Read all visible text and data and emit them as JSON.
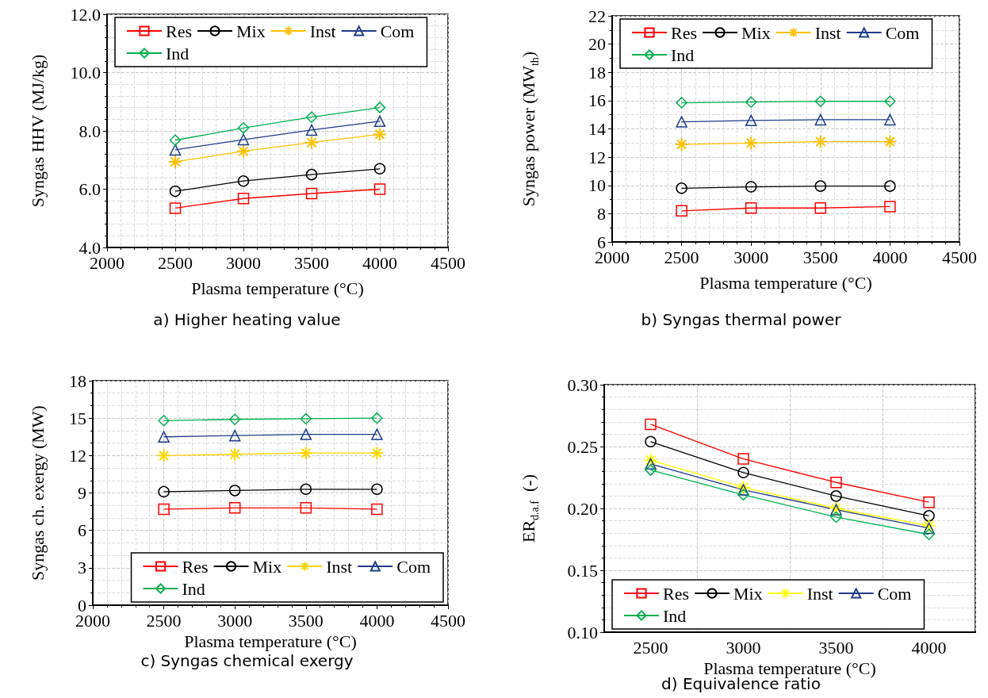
{
  "chart_data": [
    {
      "type": "line",
      "title": "a) Higher heating value",
      "xlabel": "Plasma temperature (°C)",
      "ylabel": "Syngas HHV (MJ/kg)",
      "x": [
        2500,
        3000,
        3500,
        4000
      ],
      "xlim": [
        2000,
        4500
      ],
      "xticks": [
        2000,
        2500,
        3000,
        3500,
        4000,
        4500
      ],
      "ylim": [
        4,
        12
      ],
      "yticks": [
        {
          "value": 4,
          "label": "4.0"
        },
        {
          "value": 6,
          "label": "6.0"
        },
        {
          "value": 8,
          "label": "8.0"
        },
        {
          "value": 10,
          "label": "10.0"
        },
        {
          "value": 12,
          "label": "12.0"
        }
      ],
      "grid": true,
      "legend": "top left",
      "series": [
        {
          "name": "Res",
          "color": "#ff0000",
          "marker": "square",
          "values": [
            5.35,
            5.68,
            5.85,
            6.0
          ]
        },
        {
          "name": "Mix",
          "color": "#000000",
          "marker": "circle",
          "values": [
            5.93,
            6.28,
            6.5,
            6.7
          ]
        },
        {
          "name": "Inst",
          "color": "#ffc000",
          "marker": "cross",
          "values": [
            6.94,
            7.3,
            7.6,
            7.88
          ]
        },
        {
          "name": "Com",
          "color": "#1f3c88",
          "marker": "triangle",
          "values": [
            7.35,
            7.7,
            8.03,
            8.33
          ]
        },
        {
          "name": "Ind",
          "color": "#00b050",
          "marker": "diamond",
          "values": [
            7.68,
            8.1,
            8.47,
            8.8
          ]
        }
      ]
    },
    {
      "type": "line",
      "title": "b) Syngas thermal power",
      "xlabel": "Plasma temperature (°C)",
      "ylabel": "Syngas power (MW$_{th}$)",
      "x": [
        2500,
        3000,
        3500,
        4000
      ],
      "xlim": [
        2000,
        4500
      ],
      "xticks": [
        2000,
        2500,
        3000,
        3500,
        4000,
        4500
      ],
      "ylim": [
        6,
        22
      ],
      "yticks": [
        6,
        8,
        10,
        12,
        14,
        16,
        18,
        20,
        22
      ],
      "grid": true,
      "legend": "top",
      "series": [
        {
          "name": "Res",
          "color": "#ff0000",
          "marker": "square",
          "values": [
            8.2,
            8.4,
            8.4,
            8.5
          ]
        },
        {
          "name": "Mix",
          "color": "#000000",
          "marker": "circle",
          "values": [
            9.8,
            9.9,
            9.95,
            9.95
          ]
        },
        {
          "name": "Inst",
          "color": "#ffc000",
          "marker": "cross",
          "values": [
            12.9,
            13.0,
            13.1,
            13.1
          ]
        },
        {
          "name": "Com",
          "color": "#1f3c88",
          "marker": "triangle",
          "values": [
            14.5,
            14.6,
            14.65,
            14.65
          ]
        },
        {
          "name": "Ind",
          "color": "#00b050",
          "marker": "diamond",
          "values": [
            15.85,
            15.9,
            15.95,
            15.95
          ]
        }
      ]
    },
    {
      "type": "line",
      "title": "c) Syngas chemical exergy",
      "xlabel": "Plasma temperature (°C)",
      "ylabel": "Syngas ch. exergy (MW)",
      "x": [
        2500,
        3000,
        3500,
        4000
      ],
      "xlim": [
        2000,
        4500
      ],
      "xticks": [
        2000,
        2500,
        3000,
        3500,
        4000,
        4500
      ],
      "ylim": [
        0,
        18
      ],
      "yticks": [
        0,
        3,
        6,
        9,
        12,
        15,
        18
      ],
      "grid": true,
      "legend": "bottom right",
      "series": [
        {
          "name": "Res",
          "color": "#ff0000",
          "marker": "square",
          "values": [
            7.7,
            7.8,
            7.8,
            7.7
          ]
        },
        {
          "name": "Mix",
          "color": "#000000",
          "marker": "circle",
          "values": [
            9.1,
            9.2,
            9.3,
            9.3
          ]
        },
        {
          "name": "Inst",
          "color": "#ffd700",
          "marker": "cross",
          "values": [
            12.0,
            12.1,
            12.2,
            12.2
          ]
        },
        {
          "name": "Com",
          "color": "#1f3c88",
          "marker": "triangle",
          "values": [
            13.5,
            13.6,
            13.7,
            13.7
          ]
        },
        {
          "name": "Ind",
          "color": "#00b050",
          "marker": "diamond",
          "values": [
            14.8,
            14.9,
            14.95,
            15.0
          ]
        }
      ]
    },
    {
      "type": "line",
      "title": "d) Equivalence ratio",
      "xlabel": "Plasma temperature (°C)",
      "ylabel": "ER$_{d.a.f}$  (-)",
      "categories": [
        "2500",
        "3000",
        "3500",
        "4000"
      ],
      "ylim": [
        0.1,
        0.3
      ],
      "yticks": [
        {
          "value": 0.1,
          "label": "0.10"
        },
        {
          "value": 0.15,
          "label": "0.15"
        },
        {
          "value": 0.2,
          "label": "0.20"
        },
        {
          "value": 0.25,
          "label": "0.25"
        },
        {
          "value": 0.3,
          "label": "0.30"
        }
      ],
      "grid": true,
      "legend": "bottom left",
      "series": [
        {
          "name": "Res",
          "color": "#ff0000",
          "marker": "square",
          "values": [
            0.268,
            0.24,
            0.221,
            0.205
          ]
        },
        {
          "name": "Mix",
          "color": "#000000",
          "marker": "circle",
          "values": [
            0.254,
            0.229,
            0.21,
            0.194
          ]
        },
        {
          "name": "Inst",
          "color": "#ffff00",
          "marker": "cross",
          "values": [
            0.239,
            0.217,
            0.2,
            0.186
          ]
        },
        {
          "name": "Com",
          "color": "#1f3c88",
          "marker": "triangle",
          "values": [
            0.236,
            0.215,
            0.199,
            0.184
          ]
        },
        {
          "name": "Ind",
          "color": "#00b050",
          "marker": "diamond",
          "values": [
            0.231,
            0.211,
            0.193,
            0.179
          ]
        }
      ]
    }
  ]
}
